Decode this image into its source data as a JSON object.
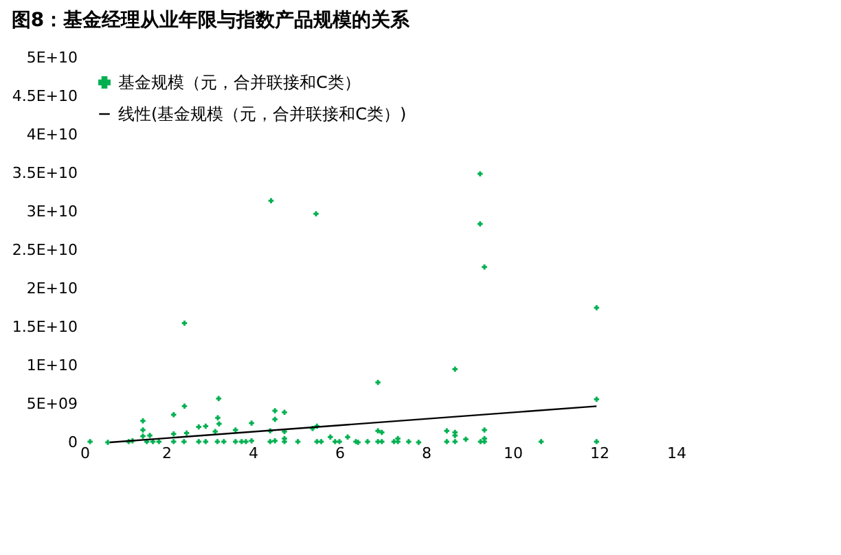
{
  "chart_data": {
    "type": "scatter",
    "title": "图8：基金经理从业年限与指数产品规模的关系",
    "xlim": [
      0,
      14
    ],
    "xticks": [
      0,
      2,
      4,
      6,
      8,
      10,
      12,
      14
    ],
    "ylim": [
      0,
      50000000000
    ],
    "yticks": [
      0,
      {
        "value": 5000000000,
        "label": "5E+09"
      },
      {
        "value": 10000000000,
        "label": "1E+10"
      },
      {
        "value": 15000000000,
        "label": "1.5E+10"
      },
      {
        "value": 20000000000,
        "label": "2E+10"
      },
      {
        "value": 25000000000,
        "label": "2.5E+10"
      },
      {
        "value": 30000000000,
        "label": "3E+10"
      },
      {
        "value": 35000000000,
        "label": "3.5E+10"
      },
      {
        "value": 40000000000,
        "label": "4E+10"
      },
      {
        "value": 45000000000,
        "label": "4.5E+10"
      },
      {
        "value": 50000000000,
        "label": "5E+10"
      }
    ],
    "grid": false,
    "legend": "top left",
    "series": [
      {
        "name": "基金规模（元，合并联接和C类）",
        "marker": "cross",
        "color": "#00b050",
        "x": [
          4.42,
          5.46,
          9.25,
          9.25,
          9.35,
          11.94,
          2.42,
          8.67,
          6.89,
          11.94,
          3.21,
          2.42,
          2.17,
          1.46,
          4.51,
          4.51,
          4.73,
          3.19,
          3.22,
          3.97,
          5.48,
          5.38,
          2.75,
          2.91,
          2.17,
          2.47,
          3.13,
          3.6,
          1.46,
          1.46,
          1.62,
          4.4,
          4.73,
          4.73,
          6.89,
          6.98,
          7.35,
          8.48,
          8.67,
          8.67,
          8.92,
          9.35,
          9.35,
          5.79,
          6.19,
          0.24,
          0.65,
          1.13,
          1.22,
          1.55,
          1.69,
          1.83,
          2.17,
          2.41,
          2.75,
          2.91,
          3.18,
          3.33,
          3.6,
          3.74,
          3.84,
          3.97,
          4.4,
          4.51,
          4.73,
          5.04,
          5.48,
          5.58,
          5.9,
          6.0,
          6.38,
          6.43,
          6.65,
          6.89,
          6.98,
          7.26,
          7.35,
          7.6,
          7.83,
          8.48,
          8.67,
          9.26,
          9.35,
          10.66,
          11.94
        ],
        "values": [
          31400000000,
          29700000000,
          34900000000,
          28400000000,
          22800000000,
          17500000000,
          15500000000,
          9500000000,
          7800000000,
          5600000000,
          5700000000,
          4700000000,
          3600000000,
          2800000000,
          4100000000,
          3000000000,
          3900000000,
          3200000000,
          2400000000,
          2500000000,
          2100000000,
          1800000000,
          2000000000,
          2100000000,
          1100000000,
          1200000000,
          1400000000,
          1600000000,
          1600000000,
          800000000,
          900000000,
          1500000000,
          1400000000,
          500000000,
          1500000000,
          1300000000,
          500000000,
          1500000000,
          1300000000,
          900000000,
          400000000,
          1600000000,
          500000000,
          700000000,
          700000000,
          100000000,
          0,
          100000000,
          200000000,
          100000000,
          100000000,
          100000000,
          100000000,
          100000000,
          100000000,
          100000000,
          100000000,
          100000000,
          100000000,
          100000000,
          100000000,
          200000000,
          100000000,
          200000000,
          100000000,
          100000000,
          100000000,
          100000000,
          100000000,
          100000000,
          100000000,
          0,
          100000000,
          100000000,
          100000000,
          100000000,
          100000000,
          100000000,
          0,
          100000000,
          100000000,
          100000000,
          100000000,
          100000000,
          100000000
        ]
      },
      {
        "name": "线性(基金规模（元，合并联接和C类）)",
        "type": "line",
        "color": "#000000",
        "x": [
          0.7,
          11.94
        ],
        "values": [
          0,
          4700000000
        ]
      }
    ]
  }
}
